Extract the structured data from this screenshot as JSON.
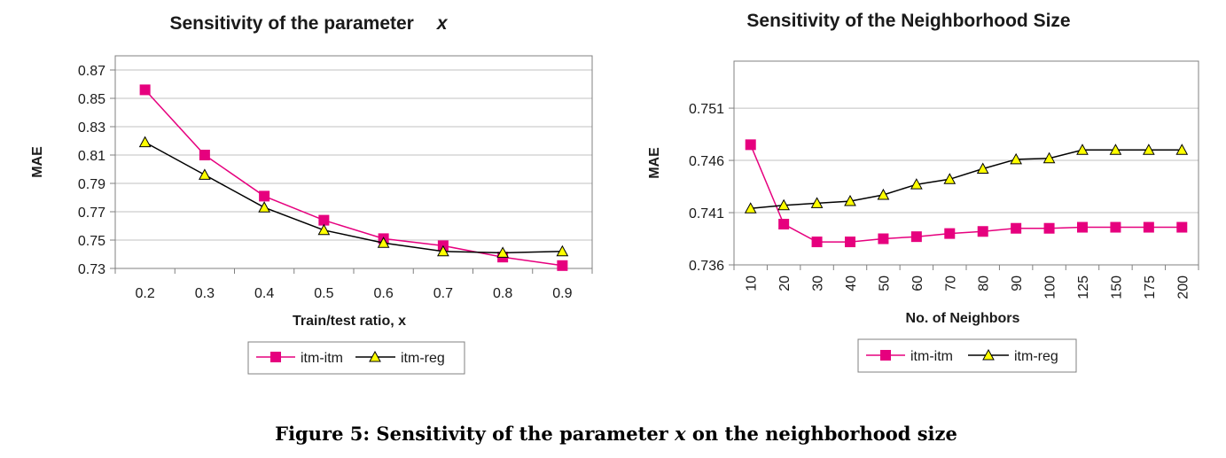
{
  "caption": {
    "prefix": "Figure 5: Sensitivity of the parameter ",
    "variable": "x",
    "suffix": " on the neighborhood size"
  },
  "colors": {
    "itm_itm": "#e6007e",
    "itm_reg": "#000000",
    "triangle_fill": "#ffff00",
    "grid": "#c0c0c0",
    "axis": "#808080"
  },
  "chart_data": [
    {
      "type": "line",
      "title": "Sensitivity of the parameter",
      "title_variable": "x",
      "xlabel": "Train/test ratio, x",
      "ylabel": "MAE",
      "categories": [
        "0.2",
        "0.3",
        "0.4",
        "0.5",
        "0.6",
        "0.7",
        "0.8",
        "0.9"
      ],
      "ylim": [
        0.73,
        0.88
      ],
      "yticks": [
        "0.73",
        "0.75",
        "0.77",
        "0.79",
        "0.81",
        "0.83",
        "0.85",
        "0.87"
      ],
      "grid": true,
      "legend_position": "bottom",
      "series": [
        {
          "name": "itm-itm",
          "marker": "square",
          "values": [
            0.856,
            0.81,
            0.781,
            0.764,
            0.751,
            0.746,
            0.738,
            0.732
          ]
        },
        {
          "name": "itm-reg",
          "marker": "triangle",
          "values": [
            0.819,
            0.796,
            0.773,
            0.757,
            0.748,
            0.742,
            0.741,
            0.742
          ]
        }
      ]
    },
    {
      "type": "line",
      "title": "Sensitivity of the Neighborhood Size",
      "xlabel": "No. of Neighbors",
      "ylabel": "MAE",
      "categories": [
        "10",
        "20",
        "30",
        "40",
        "50",
        "60",
        "70",
        "80",
        "90",
        "100",
        "125",
        "150",
        "175",
        "200"
      ],
      "ylim": [
        0.736,
        0.7555
      ],
      "yticks": [
        "0.736",
        "0.741",
        "0.746",
        "0.751"
      ],
      "grid": true,
      "legend_position": "bottom",
      "series": [
        {
          "name": "itm-itm",
          "marker": "square",
          "values": [
            0.7475,
            0.7399,
            0.7382,
            0.7382,
            0.7385,
            0.7387,
            0.739,
            0.7392,
            0.7395,
            0.7395,
            0.7396,
            0.7396,
            0.7396,
            0.7396
          ]
        },
        {
          "name": "itm-reg",
          "marker": "triangle",
          "values": [
            0.7414,
            0.7417,
            0.7419,
            0.7421,
            0.7427,
            0.7437,
            0.7442,
            0.7452,
            0.7461,
            0.7462,
            0.747,
            0.747,
            0.747,
            0.747
          ]
        }
      ]
    }
  ]
}
